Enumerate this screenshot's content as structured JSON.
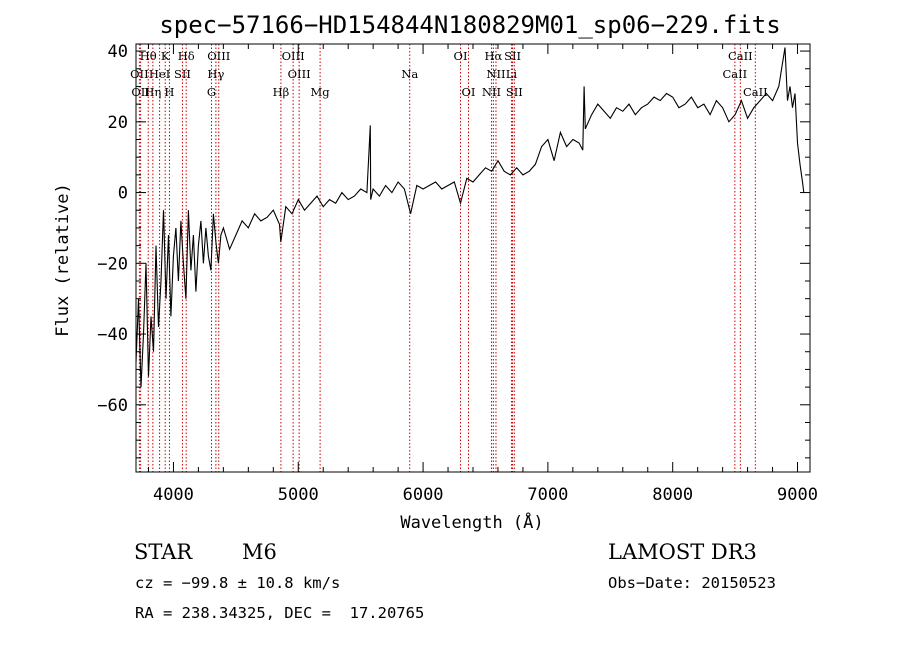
{
  "chart_data": {
    "type": "line",
    "title": "spec−57166−HD154844N180829M01_sp06−229.fits",
    "xlabel": "Wavelength (Å)",
    "ylabel": "Flux (relative)",
    "xlim": [
      3700,
      9100
    ],
    "ylim": [
      -79,
      42
    ],
    "xticks": [
      4000,
      5000,
      6000,
      7000,
      8000,
      9000
    ],
    "yticks": [
      -60,
      -40,
      -20,
      0,
      20,
      40
    ],
    "ytick_labels": [
      "−60",
      "−40",
      "−20",
      "0",
      "20",
      "40"
    ],
    "grid": false,
    "series": [
      {
        "x": [
          3700,
          3720,
          3740,
          3760,
          3780,
          3800,
          3820,
          3840,
          3860,
          3880,
          3900,
          3920,
          3940,
          3960,
          3980,
          4000,
          4020,
          4040,
          4060,
          4080,
          4100,
          4120,
          4140,
          4160,
          4180,
          4200,
          4220,
          4240,
          4260,
          4280,
          4300,
          4320,
          4340,
          4360,
          4380,
          4400,
          4450,
          4500,
          4550,
          4600,
          4650,
          4700,
          4750,
          4800,
          4850,
          4860,
          4900,
          4950,
          5000,
          5050,
          5100,
          5150,
          5200,
          5250,
          5300,
          5350,
          5400,
          5450,
          5500,
          5550,
          5577,
          5580,
          5600,
          5650,
          5700,
          5750,
          5800,
          5850,
          5900,
          5950,
          6000,
          6050,
          6100,
          6150,
          6200,
          6250,
          6300,
          6350,
          6400,
          6450,
          6500,
          6550,
          6600,
          6650,
          6700,
          6750,
          6800,
          6850,
          6900,
          6950,
          7000,
          7050,
          7100,
          7150,
          7200,
          7250,
          7280,
          7290,
          7300,
          7350,
          7400,
          7450,
          7500,
          7550,
          7600,
          7650,
          7700,
          7750,
          7800,
          7850,
          7900,
          7950,
          8000,
          8050,
          8100,
          8150,
          8200,
          8250,
          8300,
          8350,
          8400,
          8450,
          8500,
          8550,
          8600,
          8650,
          8700,
          8750,
          8800,
          8850,
          8900,
          8920,
          8940,
          8960,
          8980,
          9000,
          9020,
          9040,
          9050
        ],
        "y": [
          -48,
          -30,
          -55,
          -40,
          -20,
          -52,
          -35,
          -45,
          -15,
          -38,
          -25,
          -5,
          -30,
          -12,
          -35,
          -18,
          -10,
          -25,
          -8,
          -20,
          -30,
          -5,
          -22,
          -12,
          -28,
          -15,
          -8,
          -20,
          -10,
          -18,
          -22,
          -6,
          -14,
          -20,
          -12,
          -10,
          -16,
          -12,
          -8,
          -10,
          -6,
          -8,
          -7,
          -5,
          -9,
          -14,
          -4,
          -6,
          -2,
          -5,
          -3,
          -1,
          -4,
          -2,
          -3,
          0,
          -2,
          -1,
          1,
          0,
          19,
          -2,
          1,
          -1,
          2,
          0,
          3,
          1,
          -6,
          2,
          1,
          2,
          3,
          1,
          2,
          3,
          -3,
          4,
          3,
          5,
          7,
          6,
          9,
          6,
          5,
          7,
          5,
          6,
          8,
          13,
          15,
          9,
          17,
          13,
          15,
          14,
          12,
          30,
          18,
          22,
          25,
          23,
          21,
          24,
          23,
          25,
          22,
          24,
          25,
          27,
          26,
          28,
          27,
          24,
          25,
          27,
          24,
          25,
          22,
          26,
          24,
          20,
          22,
          26,
          21,
          24,
          26,
          28,
          26,
          30,
          41,
          26,
          30,
          24,
          28,
          14,
          8,
          3,
          0
        ]
      }
    ],
    "line_markers": [
      {
        "label": "Hθ",
        "x": 3798,
        "row": 0
      },
      {
        "label": "K",
        "x": 3934,
        "row": 0
      },
      {
        "label": "Hδ",
        "x": 4102,
        "row": 0
      },
      {
        "label": "OIII",
        "x": 4363,
        "row": 0
      },
      {
        "label": "OIII",
        "x": 4959,
        "row": 0
      },
      {
        "label": "OI",
        "x": 6300,
        "row": 0
      },
      {
        "label": "Hα",
        "x": 6563,
        "row": 0
      },
      {
        "label": "SII",
        "x": 6717,
        "row": 0
      },
      {
        "label": "CaII",
        "x": 8542,
        "row": 0
      },
      {
        "label": "OII",
        "x": 3727,
        "row": 1
      },
      {
        "label": "HeI",
        "x": 3889,
        "row": 1
      },
      {
        "label": "SII",
        "x": 4072,
        "row": 1
      },
      {
        "label": "Hγ",
        "x": 4340,
        "row": 1
      },
      {
        "label": "OIII",
        "x": 5007,
        "row": 1
      },
      {
        "label": "Na",
        "x": 5893,
        "row": 1
      },
      {
        "label": "NII",
        "x": 6584,
        "row": 1
      },
      {
        "label": "Li",
        "x": 6708,
        "row": 1
      },
      {
        "label": "CaII",
        "x": 8498,
        "row": 1
      },
      {
        "label": "OII",
        "x": 3737,
        "row": 2
      },
      {
        "label": "Hη",
        "x": 3835,
        "row": 2
      },
      {
        "label": "H",
        "x": 3968,
        "row": 2
      },
      {
        "label": "G",
        "x": 4305,
        "row": 2
      },
      {
        "label": "Hβ",
        "x": 4861,
        "row": 2
      },
      {
        "label": "Mg",
        "x": 5175,
        "row": 2
      },
      {
        "label": "OI",
        "x": 6364,
        "row": 2
      },
      {
        "label": "NII",
        "x": 6548,
        "row": 2
      },
      {
        "label": "SII",
        "x": 6731,
        "row": 2
      },
      {
        "label": "CaII",
        "x": 8662,
        "row": 2
      }
    ]
  },
  "info": {
    "object_type": "STAR",
    "subclass": "M6",
    "survey": "LAMOST DR3",
    "cz": "cz = −99.8 ± 10.8 km/s",
    "obs_date": "Obs−Date: 20150523",
    "coords": "RA = 238.34325, DEC =  17.20765"
  },
  "colors": {
    "spectrum": "#000000",
    "marker": "#cc0000"
  }
}
